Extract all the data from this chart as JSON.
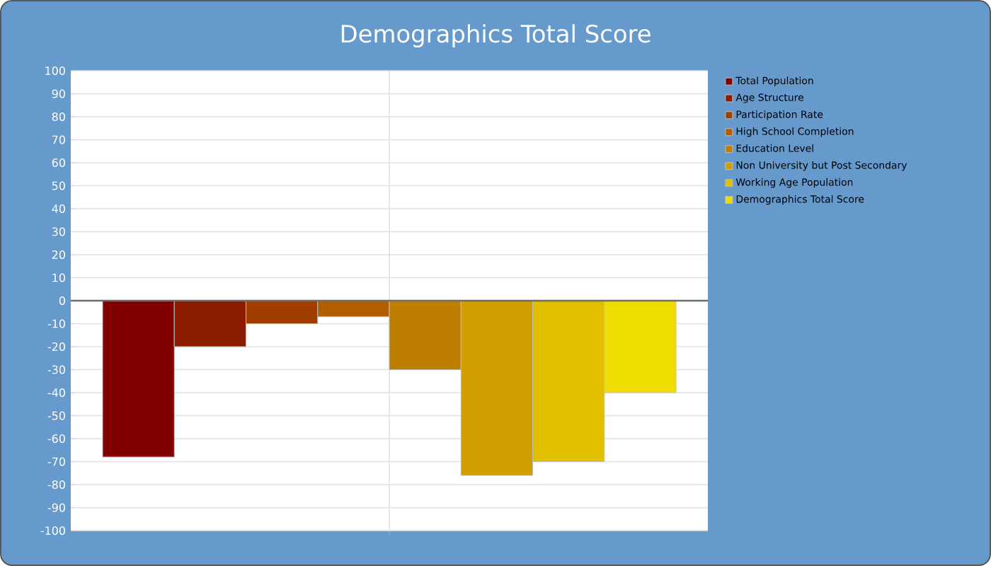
{
  "chart_data": {
    "type": "bar",
    "title": "Demographics Total Score",
    "categories": [
      null
    ],
    "series": [
      {
        "name": "Total Population",
        "color": "#800000",
        "values": [
          -68
        ]
      },
      {
        "name": "Age Structure",
        "color": "#8c1c00",
        "values": [
          -20
        ]
      },
      {
        "name": "Participation Rate",
        "color": "#a03e00",
        "values": [
          -10
        ]
      },
      {
        "name": "High School Completion",
        "color": "#b05e00",
        "values": [
          -7
        ]
      },
      {
        "name": "Education Level",
        "color": "#c07e00",
        "values": [
          -30
        ]
      },
      {
        "name": "Non University but Post Secondary",
        "color": "#d09e00",
        "values": [
          -76
        ]
      },
      {
        "name": "Working Age Population",
        "color": "#e0be00",
        "values": [
          -70
        ]
      },
      {
        "name": "Demographics Total Score",
        "color": "#eedd00",
        "values": [
          -40
        ]
      }
    ],
    "ylim": [
      -100,
      100
    ],
    "yticks": [
      -100,
      -90,
      -80,
      -70,
      -60,
      -50,
      -40,
      -30,
      -20,
      -10,
      0,
      10,
      20,
      30,
      40,
      50,
      60,
      70,
      80,
      90,
      100
    ],
    "grid": true,
    "legend": "top right"
  }
}
